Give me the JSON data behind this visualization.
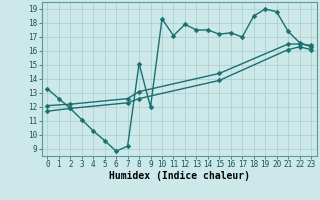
{
  "title": "",
  "xlabel": "Humidex (Indice chaleur)",
  "xlim": [
    -0.5,
    23.5
  ],
  "ylim": [
    8.5,
    19.5
  ],
  "xticks": [
    0,
    1,
    2,
    3,
    4,
    5,
    6,
    7,
    8,
    9,
    10,
    11,
    12,
    13,
    14,
    15,
    16,
    17,
    18,
    19,
    20,
    21,
    22,
    23
  ],
  "yticks": [
    9,
    10,
    11,
    12,
    13,
    14,
    15,
    16,
    17,
    18,
    19
  ],
  "bg_color": "#cce8e8",
  "grid_color": "#aacccc",
  "line_color": "#1a7070",
  "line1_x": [
    0,
    1,
    2,
    3,
    4,
    5,
    6,
    7,
    8,
    9,
    10,
    11,
    12,
    13,
    14,
    15,
    16,
    17,
    18,
    19,
    20,
    21,
    22,
    23
  ],
  "line1_y": [
    13.3,
    12.6,
    11.9,
    11.1,
    10.3,
    9.6,
    8.85,
    9.2,
    15.1,
    12.0,
    18.3,
    17.1,
    17.9,
    17.5,
    17.5,
    17.2,
    17.3,
    17.0,
    18.5,
    19.0,
    18.8,
    17.4,
    16.6,
    16.3
  ],
  "line2_x": [
    0,
    2,
    7,
    8,
    15,
    21,
    22,
    23
  ],
  "line2_y": [
    12.1,
    12.2,
    12.6,
    13.1,
    14.4,
    16.5,
    16.5,
    16.4
  ],
  "line3_x": [
    0,
    2,
    7,
    8,
    15,
    21,
    22,
    23
  ],
  "line3_y": [
    11.7,
    11.9,
    12.3,
    12.6,
    13.9,
    16.1,
    16.3,
    16.1
  ],
  "marker": "D",
  "markersize": 2.5,
  "linewidth": 1.0,
  "xlabel_fontsize": 7,
  "tick_fontsize": 5.5
}
